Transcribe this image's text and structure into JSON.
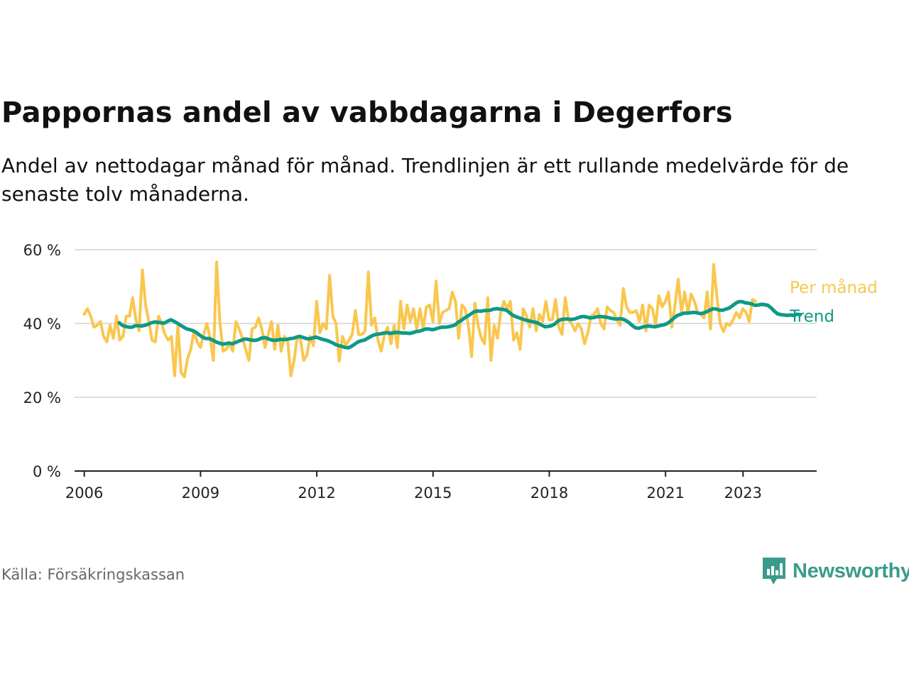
{
  "title": "Pappornas andel av vabbdagarna i Degerfors",
  "subtitle": "Andel av nettodagar månad för månad. Trendlinjen är ett rullande medelvärde för de senaste tolv månaderna.",
  "source": "Källa: Försäkringskassan",
  "brand": {
    "name": "Newsworthy",
    "icon": "newsworthy-logo-icon"
  },
  "colors": {
    "monthly": "#f9c74f",
    "trend": "#0f9987",
    "grid": "#dddddd",
    "axis": "#222222"
  },
  "chart_data": {
    "type": "line",
    "title": "Pappornas andel av vabbdagarna i Degerfors",
    "xlabel": "",
    "ylabel": "",
    "x_range": [
      2005.75,
      2024.9
    ],
    "ylim": [
      0,
      60
    ],
    "y_ticks": [
      0,
      20,
      40,
      60
    ],
    "y_tick_labels": [
      "0 %",
      "20 %",
      "40 %",
      "60 %"
    ],
    "x_ticks": [
      2006,
      2009,
      2012,
      2015,
      2018,
      2021,
      2023
    ],
    "x_tick_labels": [
      "2006",
      "2009",
      "2012",
      "2015",
      "2018",
      "2021",
      "2023"
    ],
    "grid": true,
    "legend": "right-end-labels",
    "series": [
      {
        "name": "Per månad",
        "color": "#f9c74f",
        "x_start": 2006.0,
        "step": 0.0833,
        "values": [
          42.5,
          44,
          42,
          39,
          39.5,
          40.5,
          36.5,
          35,
          39.5,
          36,
          42,
          35.5,
          36.5,
          42,
          42,
          47,
          41,
          38,
          54.5,
          45,
          40.5,
          35.5,
          35,
          42,
          40,
          37,
          35.5,
          36.5,
          25.8,
          39.5,
          26.7,
          25.5,
          30.5,
          33,
          38,
          35,
          33.5,
          37,
          40,
          36,
          30,
          56.7,
          40.5,
          32.5,
          33,
          34.5,
          32.5,
          40.5,
          38.5,
          36,
          33,
          30,
          38.5,
          39,
          41.5,
          38.5,
          33.5,
          37,
          40.5,
          33,
          39.5,
          32.5,
          36.5,
          35.5,
          25.8,
          30,
          36.5,
          35.5,
          30,
          31.5,
          36.5,
          34,
          46,
          37.5,
          40,
          38.5,
          53,
          42,
          40,
          29.8,
          36.5,
          34,
          35.5,
          37,
          43.5,
          37,
          37,
          38,
          54,
          39.5,
          41.5,
          35.5,
          32.5,
          37,
          39,
          34.5,
          39.5,
          33.5,
          46,
          38.5,
          45,
          40.5,
          44,
          38.5,
          44,
          38.5,
          44.5,
          45,
          40.5,
          51.5,
          40,
          43,
          43.5,
          44,
          48.5,
          46,
          36,
          45,
          44,
          39.5,
          31,
          45.5,
          39.5,
          36,
          34.5,
          47,
          30,
          39.5,
          36,
          43,
          46,
          44,
          46,
          35.5,
          37.5,
          33,
          44,
          42,
          39,
          44,
          38,
          42.5,
          40.5,
          46,
          41,
          41,
          46.5,
          39,
          37,
          47,
          41,
          40,
          38,
          40,
          38.5,
          34.5,
          37.5,
          42,
          42.5,
          44,
          40,
          38.5,
          44.5,
          43.5,
          43,
          41,
          39.5,
          49.5,
          44.5,
          43,
          43,
          43.5,
          40.5,
          45,
          38,
          45,
          44,
          39.5,
          47.5,
          44.5,
          46,
          48.5,
          39,
          45,
          52,
          43,
          48.5,
          43,
          48,
          46,
          43,
          42.5,
          41.5,
          48.5,
          38.5,
          56,
          47,
          40,
          37.8,
          40,
          39.5,
          41,
          43,
          41.5,
          44,
          43,
          40.5,
          46.5,
          46
        ]
      },
      {
        "name": "Trend",
        "color": "#0f9987",
        "x_start": 2006.9,
        "step": 0.0833,
        "values": [
          40.2,
          39.5,
          39.2,
          39,
          39,
          39.4,
          39.4,
          39.3,
          39.5,
          39.8,
          40.2,
          40.4,
          40.3,
          40.2,
          40.1,
          40.6,
          41,
          40.6,
          40.1,
          39.5,
          39,
          38.5,
          38.3,
          38,
          37.5,
          36.8,
          36.2,
          35.9,
          35.9,
          35.5,
          35,
          34.7,
          34.4,
          34.5,
          34.7,
          34.5,
          34.8,
          35.2,
          35.5,
          35.8,
          35.7,
          35.5,
          35.4,
          35.6,
          36,
          36.2,
          35.9,
          35.6,
          35.4,
          35.5,
          35.7,
          35.6,
          35.7,
          35.9,
          36,
          36.3,
          36.5,
          36.2,
          35.9,
          35.8,
          36.1,
          36.3,
          36,
          35.7,
          35.5,
          35.2,
          34.8,
          34.3,
          34,
          33.8,
          33.5,
          33.4,
          33.8,
          34.4,
          35,
          35.3,
          35.5,
          36,
          36.5,
          36.9,
          37.1,
          37.2,
          37.4,
          37.5,
          37.3,
          37.5,
          37.6,
          37.5,
          37.4,
          37.4,
          37.3,
          37.5,
          37.8,
          37.9,
          38.2,
          38.5,
          38.5,
          38.3,
          38.5,
          38.8,
          39,
          39,
          39.1,
          39.3,
          39.6,
          40.3,
          40.8,
          41.5,
          42,
          42.6,
          43.2,
          43.4,
          43.3,
          43.5,
          43.5,
          43.6,
          43.9,
          44,
          43.9,
          43.8,
          43.6,
          42.9,
          42.2,
          41.8,
          41.5,
          41.2,
          40.9,
          40.7,
          40.5,
          40.3,
          40,
          39.5,
          39.1,
          39.2,
          39.4,
          39.9,
          40.7,
          41.1,
          41.2,
          41.2,
          41.1,
          41.2,
          41.5,
          41.8,
          41.9,
          41.7,
          41.5,
          41.6,
          41.8,
          41.9,
          41.8,
          41.7,
          41.5,
          41.3,
          41.2,
          41.3,
          41.2,
          40.8,
          40.2,
          39.4,
          38.8,
          38.7,
          39,
          39.2,
          39.3,
          39.2,
          39.1,
          39.3,
          39.5,
          39.7,
          40.1,
          40.8,
          41.6,
          42.2,
          42.5,
          42.8,
          42.8,
          42.9,
          43,
          42.9,
          42.7,
          42.8,
          43.2,
          43.6,
          44,
          43.9,
          43.6,
          43.6,
          43.9,
          44.2,
          44.8,
          45.5,
          45.9,
          45.9,
          45.6,
          45.5,
          45.3,
          44.9,
          45,
          45.2,
          45.1,
          44.9,
          44.2,
          43.3,
          42.6,
          42.4,
          42.3,
          42.2,
          42.3,
          42.2,
          42.5,
          42.4
        ]
      }
    ]
  }
}
